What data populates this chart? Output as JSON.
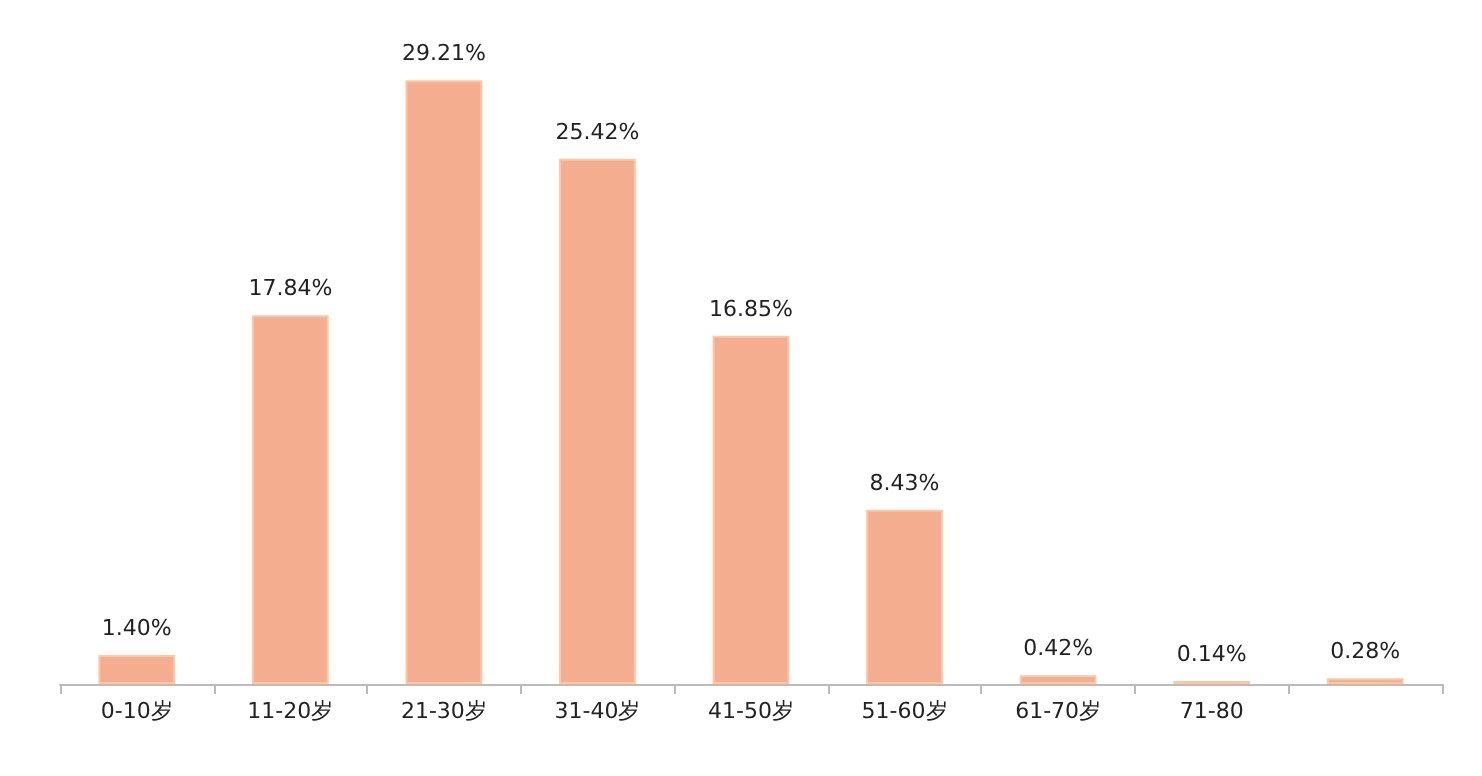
{
  "chart_data": {
    "type": "bar",
    "categories": [
      "0-10岁",
      "11-20岁",
      "21-30岁",
      "31-40岁",
      "41-50岁",
      "51-60岁",
      "61-70岁",
      "71-80",
      null
    ],
    "values": [
      1.4,
      17.84,
      29.21,
      25.42,
      16.85,
      8.43,
      0.42,
      0.14,
      0.28
    ],
    "value_labels": [
      "1.40%",
      "17.84%",
      "29.21%",
      "25.42%",
      "16.85%",
      "8.43%",
      "0.42%",
      "0.14%",
      "0.28%"
    ],
    "color": "#f5ad8f",
    "tick_labels": "x",
    "grid": false
  }
}
